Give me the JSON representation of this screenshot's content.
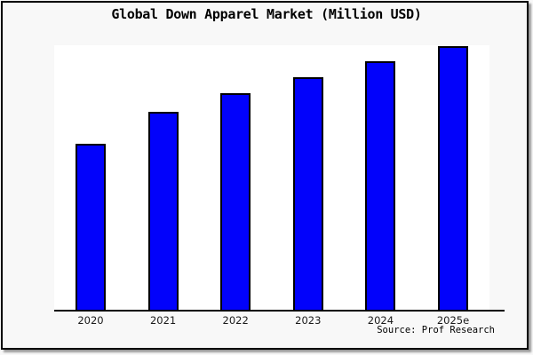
{
  "window": {
    "title": "Global Down Apparel Market (Million USD)"
  },
  "chart_data": {
    "type": "bar",
    "title": "Global Down Apparel Market (Million USD)",
    "unit": "Million USD",
    "categories": [
      "2020",
      "2021",
      "2022",
      "2023",
      "2024",
      "2025e"
    ],
    "series": [
      {
        "name": "Global Down Apparel Market",
        "values_pct_of_plot_height": [
          63,
          75,
          82,
          88,
          94,
          99.7
        ]
      }
    ],
    "value_labels_visible": false,
    "y_axis": {
      "visible": false,
      "tick_labels": [],
      "note": "no y-axis scale shown; values estimated as percent of plot height, 2025e bar reaches plot top"
    },
    "x_axis": {
      "visible": true,
      "tick_labels": [
        "2020",
        "2021",
        "2022",
        "2023",
        "2024",
        "2025e"
      ]
    },
    "grid": false,
    "legend": false,
    "colors": {
      "bar_fill": "#0202fb",
      "bar_border": "#000000",
      "figure_background": "#f8f8f8",
      "plot_background": "#ffffff",
      "axis_line": "#000000",
      "frame_border": "#000000"
    },
    "source_note": "Source: Prof Research"
  }
}
